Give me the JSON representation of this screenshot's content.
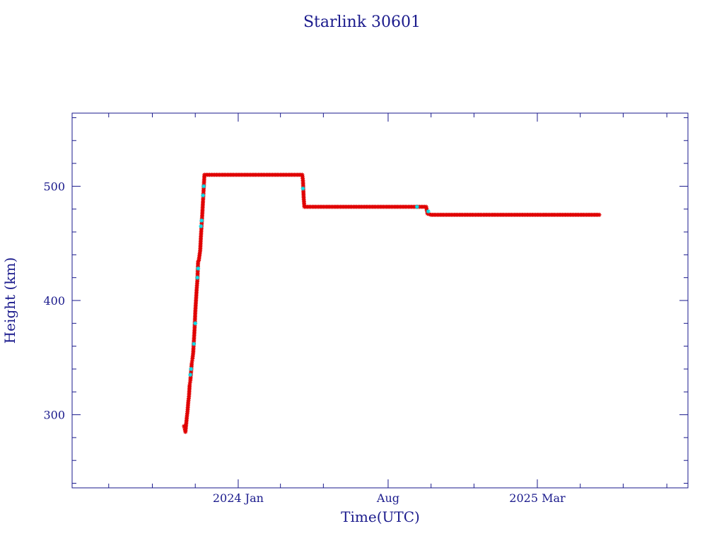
{
  "chart_data": {
    "type": "scatter",
    "title": "Starlink 30601",
    "xlabel": "Time(UTC)",
    "ylabel": "Height (km)",
    "x_ticks": [
      {
        "label": "2024 Jan",
        "date": "2024-01-01"
      },
      {
        "label": "Aug",
        "date": "2024-08-01"
      },
      {
        "label": "2025 Mar",
        "date": "2025-03-01"
      }
    ],
    "y_ticks": [
      300,
      400,
      500
    ],
    "xlim": [
      "2023-05-10",
      "2025-10-01"
    ],
    "ylim": [
      236,
      564
    ],
    "grid": false,
    "colors": {
      "axis": "#1a1a8c",
      "text": "#1a1a8c",
      "primary_points": "#e00000",
      "secondary_points": "#00e5f0",
      "line": "#000000"
    },
    "series": [
      {
        "marker": "star",
        "color": "#e00000",
        "points": [
          [
            "2023-10-16",
            290
          ],
          [
            "2023-10-17",
            288
          ],
          [
            "2023-10-18",
            285
          ],
          [
            "2023-10-20",
            298
          ],
          [
            "2023-10-21",
            303
          ],
          [
            "2023-10-22",
            311
          ],
          [
            "2023-10-23",
            316
          ],
          [
            "2023-10-24",
            326
          ],
          [
            "2023-10-25",
            330
          ],
          [
            "2023-10-27",
            345
          ],
          [
            "2023-10-28",
            349
          ],
          [
            "2023-10-29",
            354
          ],
          [
            "2023-10-31",
            375
          ],
          [
            "2023-11-01",
            390
          ],
          [
            "2023-11-02",
            400
          ],
          [
            "2023-11-03",
            410
          ],
          [
            "2023-11-04",
            418
          ],
          [
            "2023-11-05",
            434
          ],
          [
            "2023-11-06",
            435
          ],
          [
            "2023-11-08",
            444
          ],
          [
            "2023-11-09",
            456
          ],
          [
            "2023-11-11",
            476
          ],
          [
            "2023-11-14",
            510
          ],
          [
            "2023-12-01",
            510
          ],
          [
            "2024-01-01",
            510
          ],
          [
            "2024-02-01",
            510
          ],
          [
            "2024-03-01",
            510
          ],
          [
            "2024-04-01",
            510
          ],
          [
            "2024-04-02",
            505
          ],
          [
            "2024-04-03",
            490
          ],
          [
            "2024-04-04",
            482
          ],
          [
            "2024-05-01",
            482
          ],
          [
            "2024-06-01",
            482
          ],
          [
            "2024-07-01",
            482
          ],
          [
            "2024-08-01",
            482
          ],
          [
            "2024-09-01",
            482
          ],
          [
            "2024-09-24",
            482
          ],
          [
            "2024-09-26",
            476
          ],
          [
            "2024-10-01",
            475
          ],
          [
            "2024-11-01",
            475
          ],
          [
            "2024-12-01",
            475
          ],
          [
            "2025-01-01",
            475
          ],
          [
            "2025-02-01",
            475
          ],
          [
            "2025-03-01",
            475
          ],
          [
            "2025-04-01",
            475
          ],
          [
            "2025-05-01",
            475
          ],
          [
            "2025-05-28",
            475
          ]
        ]
      },
      {
        "marker": "star",
        "color": "#00e5f0",
        "points": [
          [
            "2023-10-25",
            335
          ],
          [
            "2023-10-26",
            340
          ],
          [
            "2023-10-30",
            362
          ],
          [
            "2023-11-01",
            380
          ],
          [
            "2023-11-04",
            420
          ],
          [
            "2023-11-05",
            428
          ],
          [
            "2023-11-09",
            465
          ],
          [
            "2023-11-10",
            470
          ],
          [
            "2023-11-12",
            492
          ],
          [
            "2023-11-13",
            500
          ],
          [
            "2024-04-02",
            498
          ],
          [
            "2024-09-11",
            482
          ],
          [
            "2024-09-27",
            478
          ]
        ]
      }
    ]
  }
}
